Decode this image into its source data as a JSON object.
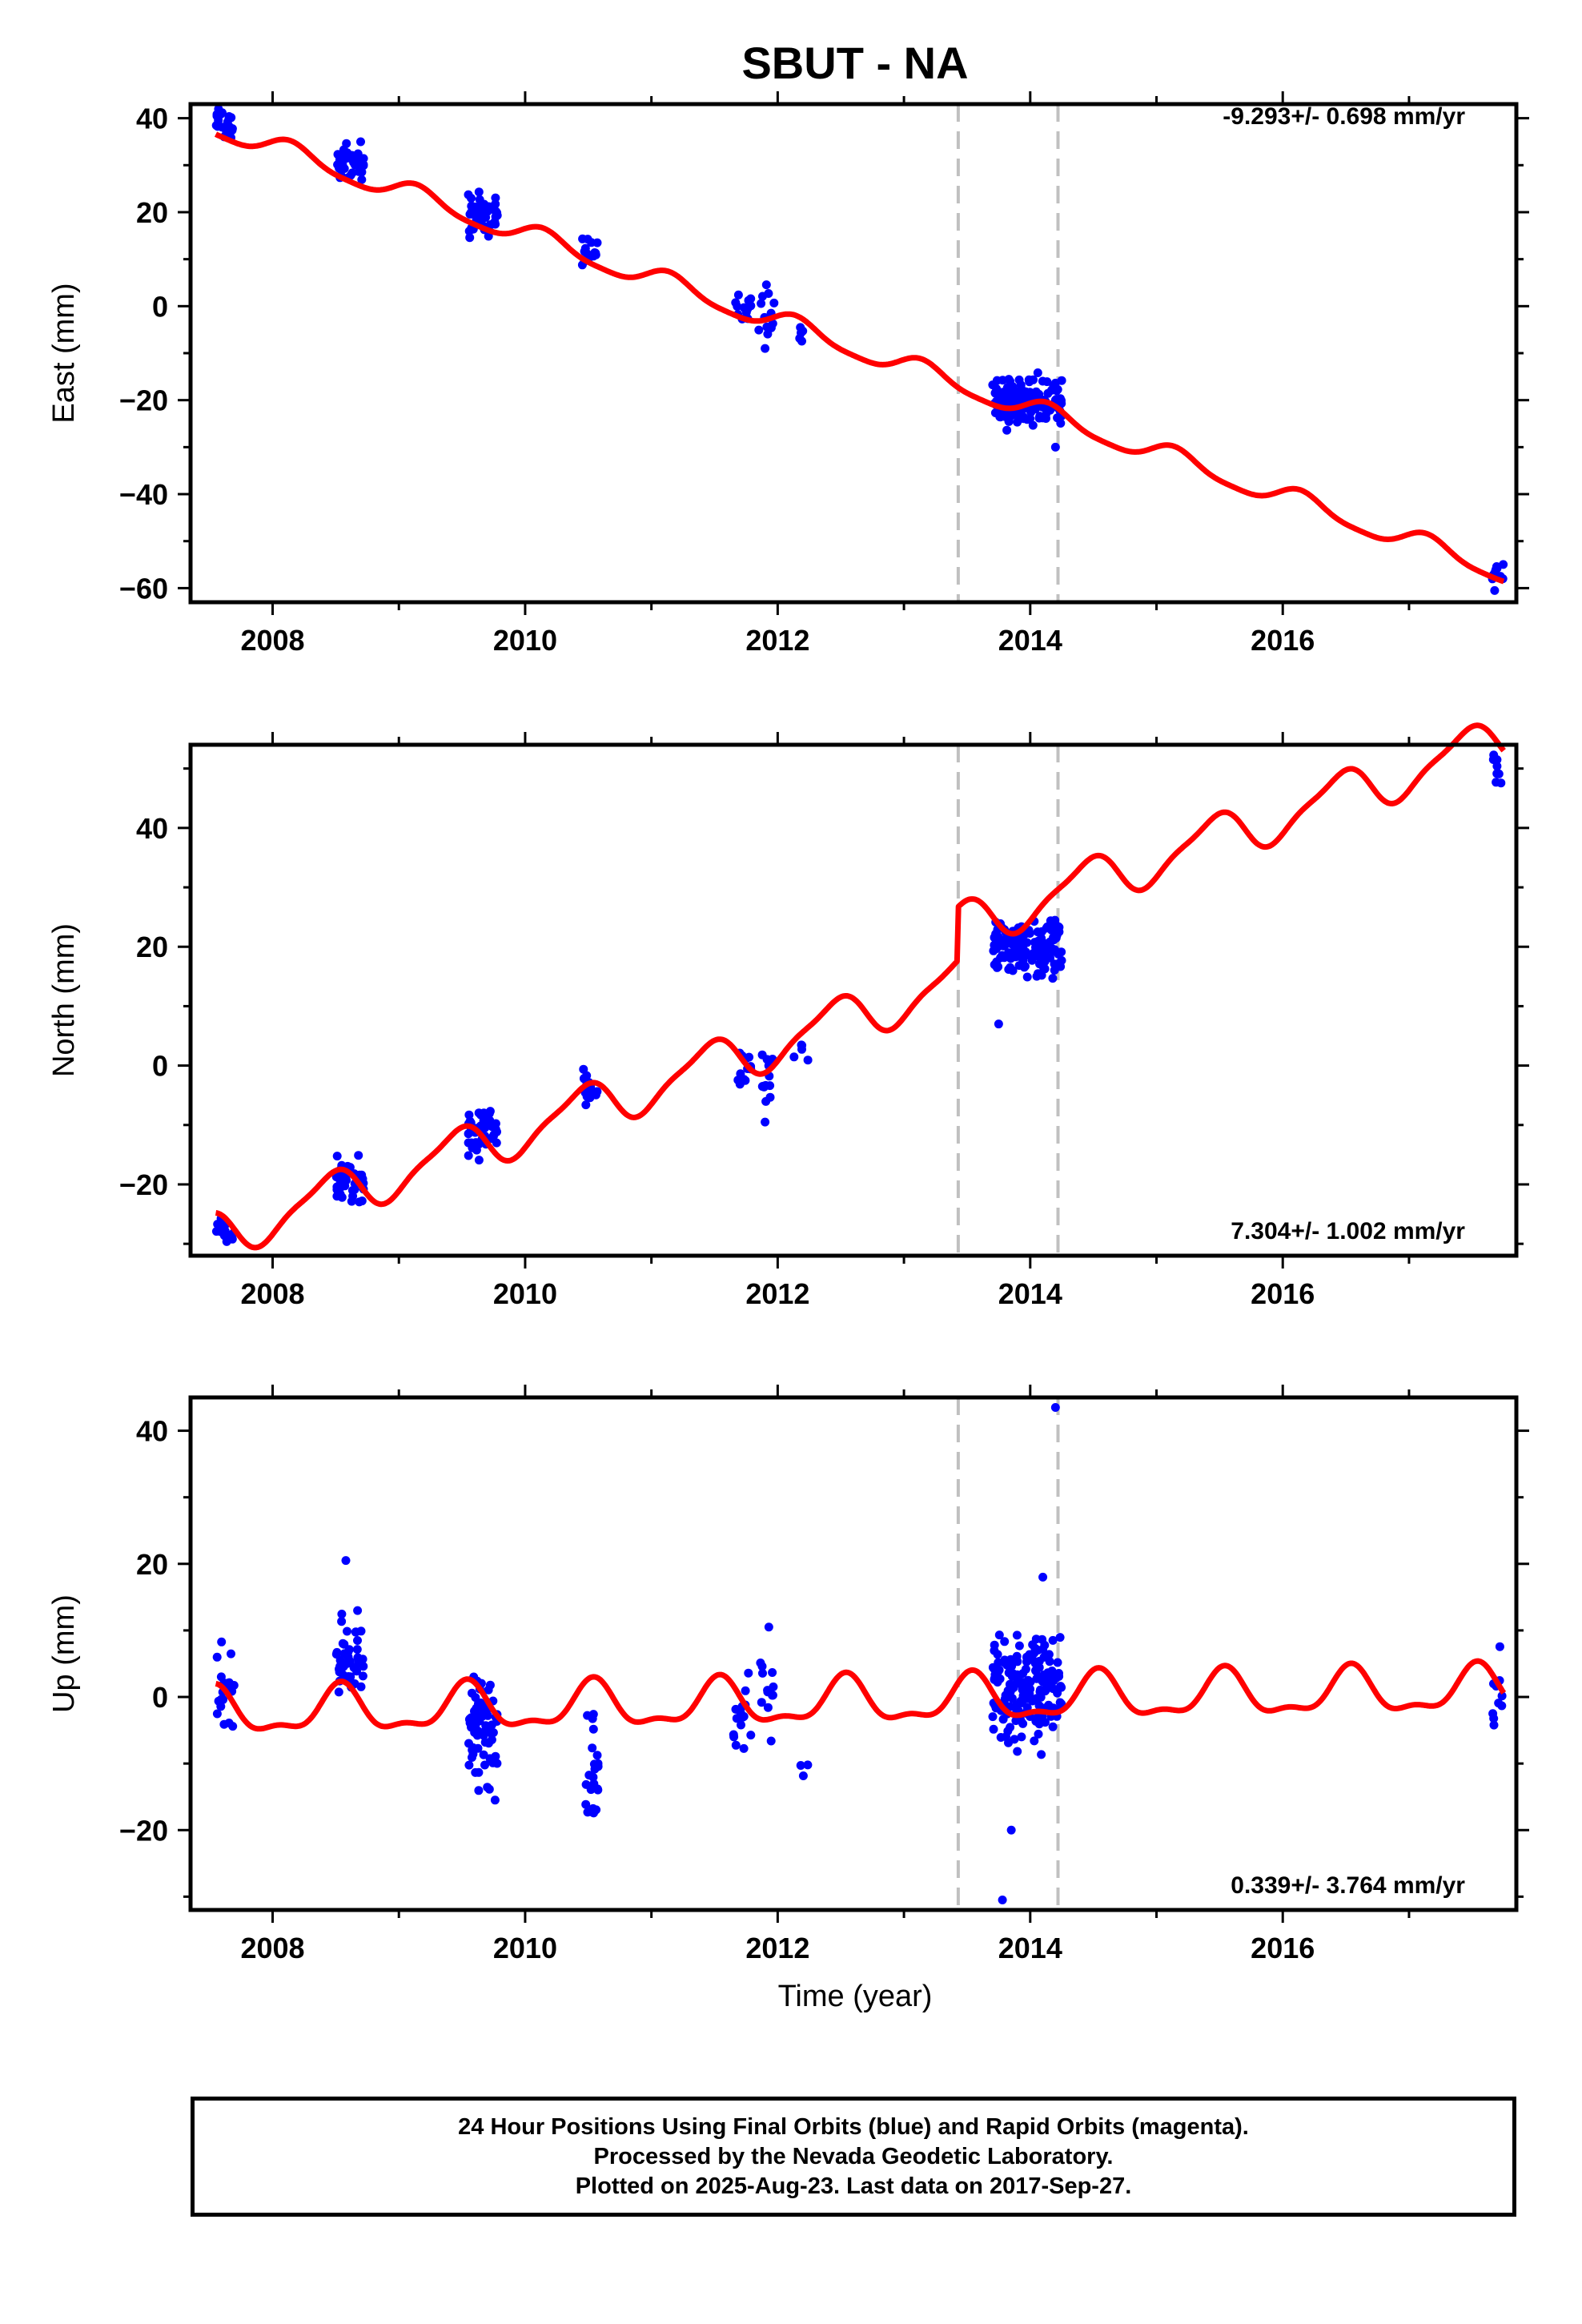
{
  "page": {
    "title": "SBUT - NA",
    "xlabel": "Time (year)"
  },
  "colors": {
    "points": "#0000ff",
    "model": "#ff0000",
    "event_lines": "#c0c0c0",
    "axis": "#000000"
  },
  "caption": {
    "line1": "24 Hour Positions Using Final Orbits (blue) and Rapid Orbits (magenta).",
    "line2": "Processed by the Nevada Geodetic Laboratory.",
    "line3": "Plotted on 2025-Aug-23. Last data on 2017-Sep-27."
  },
  "chart_data": [
    {
      "type": "scatter",
      "component": "east",
      "ylabel": "East (mm)",
      "rate_text": "-9.293+/- 0.698 mm/yr",
      "xlim": [
        2007.35,
        2017.85
      ],
      "ylim": [
        -63,
        43
      ],
      "xticks": [
        2008,
        2010,
        2012,
        2014,
        2016
      ],
      "yticks": [
        -60,
        -40,
        -20,
        0,
        20,
        40
      ],
      "event_lines_x": [
        2013.43,
        2014.22
      ],
      "point_clusters": [
        {
          "start": 2007.55,
          "end": 2007.7,
          "center": 39,
          "spread": 2.5,
          "count": 20
        },
        {
          "start": 2008.5,
          "end": 2008.72,
          "center": 30.5,
          "spread": 2.5,
          "count": 40
        },
        {
          "start": 2009.55,
          "end": 2009.78,
          "center": 19.5,
          "spread": 3,
          "count": 50
        },
        {
          "start": 2010.45,
          "end": 2010.58,
          "center": 12,
          "spread": 2,
          "count": 15
        },
        {
          "start": 2011.65,
          "end": 2011.8,
          "center": -0.5,
          "spread": 1.8,
          "count": 12
        },
        {
          "start": 2011.85,
          "end": 2011.98,
          "center": -2,
          "spread": 4,
          "count": 12
        },
        {
          "start": 2012.1,
          "end": 2012.25,
          "center": -5,
          "spread": 1.5,
          "count": 5
        },
        {
          "start": 2013.7,
          "end": 2014.25,
          "center": -20,
          "spread": 3,
          "count": 150
        },
        {
          "start": 2017.65,
          "end": 2017.75,
          "center": -57.5,
          "spread": 2.5,
          "count": 10
        }
      ],
      "outlier_points": [
        {
          "x": 2011.9,
          "y": -9
        },
        {
          "x": 2014.2,
          "y": -30
        }
      ],
      "model": {
        "rate_mm_per_yr": -9.293,
        "ref_year": 2007.5,
        "intercept": 38.5,
        "offsets": [
          {
            "year": 2013.43,
            "value": 0
          }
        ],
        "annual_amplitude": 2.2,
        "annual_phase": 0.6,
        "semiannual_amplitude": 0.5,
        "semiannual_phase": 0
      }
    },
    {
      "type": "scatter",
      "component": "north",
      "ylabel": "North (mm)",
      "rate_text": "7.304+/- 1.002 mm/yr",
      "xlim": [
        2007.35,
        2017.85
      ],
      "ylim": [
        -32,
        54
      ],
      "xticks": [
        2008,
        2010,
        2012,
        2014,
        2016
      ],
      "yticks": [
        -20,
        0,
        20,
        40
      ],
      "event_lines_x": [
        2013.43,
        2014.22
      ],
      "point_clusters": [
        {
          "start": 2007.55,
          "end": 2007.7,
          "center": -28,
          "spread": 1.5,
          "count": 15
        },
        {
          "start": 2008.5,
          "end": 2008.72,
          "center": -19.5,
          "spread": 3,
          "count": 40
        },
        {
          "start": 2009.55,
          "end": 2009.78,
          "center": -11.5,
          "spread": 2.5,
          "count": 50
        },
        {
          "start": 2010.45,
          "end": 2010.58,
          "center": -4,
          "spread": 2,
          "count": 15
        },
        {
          "start": 2011.65,
          "end": 2011.8,
          "center": -1.5,
          "spread": 2.5,
          "count": 12
        },
        {
          "start": 2011.85,
          "end": 2011.98,
          "center": -2,
          "spread": 3.5,
          "count": 12
        },
        {
          "start": 2012.1,
          "end": 2012.25,
          "center": 2.5,
          "spread": 1.5,
          "count": 5
        },
        {
          "start": 2013.7,
          "end": 2014.25,
          "center": 20,
          "spread": 3,
          "count": 150
        },
        {
          "start": 2017.65,
          "end": 2017.75,
          "center": 50,
          "spread": 2,
          "count": 10
        }
      ],
      "outlier_points": [
        {
          "x": 2011.9,
          "y": -9.5
        },
        {
          "x": 2013.75,
          "y": 7
        }
      ],
      "model": {
        "rate_mm_per_yr": 7.304,
        "ref_year": 2007.5,
        "intercept": -29,
        "offsets": [
          {
            "year": 2013.43,
            "value": 9
          }
        ],
        "annual_amplitude": 3.8,
        "annual_phase": -1.2,
        "semiannual_amplitude": 1,
        "semiannual_phase": 0.5
      }
    },
    {
      "type": "scatter",
      "component": "up",
      "ylabel": "Up (mm)",
      "rate_text": "0.339+/- 3.764 mm/yr",
      "xlim": [
        2007.35,
        2017.85
      ],
      "ylim": [
        -32,
        45
      ],
      "xticks": [
        2008,
        2010,
        2012,
        2014,
        2016
      ],
      "yticks": [
        -20,
        0,
        20,
        40
      ],
      "event_lines_x": [
        2013.43,
        2014.22
      ],
      "point_clusters": [
        {
          "start": 2007.55,
          "end": 2007.7,
          "center": 0,
          "spread": 4.5,
          "count": 20
        },
        {
          "start": 2008.5,
          "end": 2008.72,
          "center": 6,
          "spread": 4.5,
          "count": 50
        },
        {
          "start": 2009.55,
          "end": 2009.78,
          "center": -6,
          "spread": 5,
          "count": 70
        },
        {
          "start": 2010.45,
          "end": 2010.58,
          "center": -11,
          "spread": 5,
          "count": 25
        },
        {
          "start": 2011.65,
          "end": 2011.8,
          "center": -2,
          "spread": 3.5,
          "count": 15
        },
        {
          "start": 2011.85,
          "end": 2011.98,
          "center": 0,
          "spread": 3.5,
          "count": 12
        },
        {
          "start": 2012.1,
          "end": 2012.25,
          "center": -11,
          "spread": 1,
          "count": 3
        },
        {
          "start": 2013.7,
          "end": 2014.25,
          "center": 1.5,
          "spread": 5,
          "count": 170
        },
        {
          "start": 2017.65,
          "end": 2017.75,
          "center": 1.5,
          "spread": 5,
          "count": 12
        }
      ],
      "outlier_points": [
        {
          "x": 2008.58,
          "y": 20.5
        },
        {
          "x": 2011.93,
          "y": 10.5
        },
        {
          "x": 2014.1,
          "y": 18
        },
        {
          "x": 2014.2,
          "y": 43.5
        },
        {
          "x": 2013.78,
          "y": -30.5
        },
        {
          "x": 2013.85,
          "y": -20
        }
      ],
      "model": {
        "rate_mm_per_yr": 0.339,
        "ref_year": 2007.5,
        "intercept": -2.5,
        "offsets": [
          {
            "year": 2013.43,
            "value": 0
          }
        ],
        "annual_amplitude": 3.2,
        "annual_phase": -1.8,
        "semiannual_amplitude": 1.3,
        "semiannual_phase": 1.0
      }
    }
  ]
}
